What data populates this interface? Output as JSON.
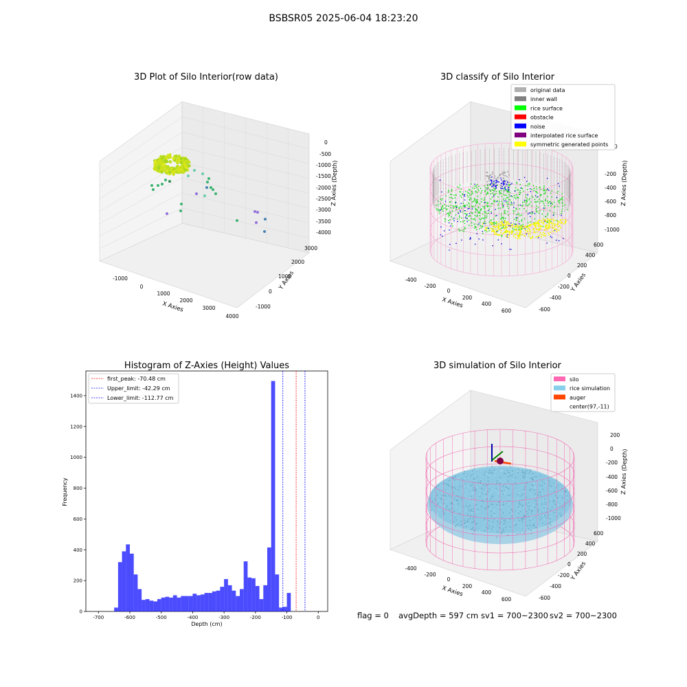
{
  "figure_title": "BSBSR05 2025-06-04 18:23:20",
  "footer": {
    "flag": "flag = 0",
    "avg_depth": "avgDepth = 597 cm",
    "sv1": "sv1 = 700~2300",
    "sv2": "sv2 = 700~2300"
  },
  "chart_data": [
    {
      "type": "scatter",
      "title": "3D Plot of Silo Interior(row data)",
      "xlabel": "X Axies",
      "ylabel": "Y Axies",
      "zlabel": "Z Axies (Depth)",
      "x_ticks": [
        "-1000",
        "0",
        "1000",
        "2000",
        "3000",
        "4000"
      ],
      "y_ticks": [
        "-1000",
        "0",
        "1000",
        "2000",
        "3000"
      ],
      "z_ticks": [
        "0",
        "-500",
        "-1000",
        "-1500",
        "-2000",
        "-2500",
        "-3000",
        "-3500",
        "-4000"
      ],
      "xlim": [
        -1500,
        4000
      ],
      "ylim": [
        -1500,
        3500
      ],
      "zlim": [
        -4200,
        200
      ],
      "points_description": "dense ring-shaped cluster near x≈0,y≈0,z≈-1000 with scattered outliers down to z≈-3800"
    },
    {
      "type": "scatter",
      "title": "3D classify of Silo Interior",
      "xlabel": "X Axies",
      "ylabel": "Y Axies",
      "zlabel": "Z Axies (Depth)",
      "x_ticks": [
        "-400",
        "-200",
        "0",
        "200",
        "400",
        "600"
      ],
      "y_ticks": [
        "-600",
        "-400",
        "-200",
        "0",
        "200",
        "400",
        "600"
      ],
      "z_ticks": [
        "0",
        "-200",
        "-400",
        "-600",
        "-800",
        "-1000"
      ],
      "legend": [
        {
          "name": "original data",
          "color": "#b0b0b0"
        },
        {
          "name": "inner wall",
          "color": "#808080"
        },
        {
          "name": "rice surface",
          "color": "#00ff00"
        },
        {
          "name": "obstacle",
          "color": "#ff0000"
        },
        {
          "name": "noise",
          "color": "#0000ff"
        },
        {
          "name": "interpolated rice surface",
          "color": "#800080"
        },
        {
          "name": "symmetric generated points",
          "color": "#ffff00"
        }
      ],
      "legend_position": "top-right"
    },
    {
      "type": "bar",
      "title": "Histogram of Z-Axies (Height) Values",
      "xlabel": "Depth (cm)",
      "ylabel": "Frequency",
      "xlim": [
        -740,
        30
      ],
      "ylim": [
        0,
        1560
      ],
      "x_ticks": [
        -700,
        -600,
        -500,
        -400,
        -300,
        -200,
        -100,
        0
      ],
      "y_ticks": [
        0,
        200,
        400,
        600,
        800,
        1000,
        1200,
        1400
      ],
      "bin_width": 12.5,
      "bin_starts": [
        -650,
        -637.5,
        -625,
        -612.5,
        -600,
        -587.5,
        -575,
        -562.5,
        -550,
        -537.5,
        -525,
        -512.5,
        -500,
        -487.5,
        -475,
        -462.5,
        -450,
        -437.5,
        -425,
        -412.5,
        -400,
        -387.5,
        -375,
        -362.5,
        -350,
        -337.5,
        -325,
        -312.5,
        -300,
        -287.5,
        -275,
        -262.5,
        -250,
        -237.5,
        -225,
        -212.5,
        -200,
        -187.5,
        -175,
        -162.5,
        -150,
        -137.5,
        -125,
        -112.5,
        -100,
        -87.5,
        -75,
        -62.5,
        -50,
        -37.5,
        -25,
        -12.5
      ],
      "values": [
        25,
        320,
        390,
        435,
        375,
        240,
        145,
        75,
        80,
        70,
        65,
        80,
        90,
        95,
        90,
        105,
        90,
        100,
        100,
        100,
        115,
        105,
        110,
        120,
        120,
        130,
        135,
        160,
        210,
        170,
        135,
        100,
        145,
        325,
        220,
        215,
        165,
        80,
        170,
        415,
        1495,
        240,
        25,
        30,
        120
      ],
      "values_note": "heights for the first 45 bins starting at -650 are listed in order of the final drawn histogram",
      "color": "#0000ff",
      "lines": [
        {
          "label": "first_peak: -70.48 cm",
          "x": -70.48,
          "color": "#ff0000"
        },
        {
          "label": "Upper_limit: -42.29 cm",
          "x": -42.29,
          "color": "#0000ff"
        },
        {
          "label": "Lower_limit: -112.77 cm",
          "x": -112.77,
          "color": "#0000ff"
        }
      ],
      "legend_position": "top-left"
    },
    {
      "type": "scatter",
      "title": "3D simulation of Silo Interior",
      "xlabel": "X Axies",
      "ylabel": "Y Axies",
      "zlabel": "Z Axies (Depth)",
      "x_ticks": [
        "-400",
        "-200",
        "0",
        "200",
        "400",
        "600"
      ],
      "y_ticks": [
        "-600",
        "-400",
        "-200",
        "0",
        "200",
        "400",
        "600"
      ],
      "z_ticks": [
        "200",
        "0",
        "-200",
        "-400",
        "-600",
        "-800",
        "-1000"
      ],
      "legend": [
        {
          "name": "silo",
          "color": "#ff69b4"
        },
        {
          "name": "rice simulation",
          "color": "#87ceeb"
        },
        {
          "name": "auger",
          "color": "#ff4500"
        },
        {
          "name": "center(97,-11)",
          "color": ""
        }
      ],
      "legend_position": "top-right"
    }
  ]
}
